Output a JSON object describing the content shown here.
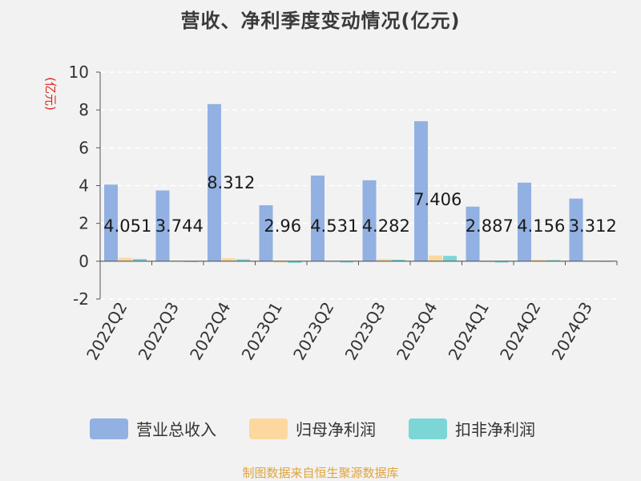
{
  "title": "营收、净利季度变动情况(亿元)",
  "source": "制图数据来自恒生聚源数据库",
  "colors": {
    "revenue": "#92b1e2",
    "net_profit": "#fcd89e",
    "deducted_profit": "#7cd6d6",
    "grid": "#ffffff",
    "axis": "#555555"
  },
  "chart_data": {
    "type": "bar",
    "title": "营收、净利季度变动情况(亿元)",
    "ylabel": "(亿元)",
    "xlabel": "",
    "ylim": [
      -2,
      10
    ],
    "yticks": [
      -2,
      0,
      2,
      4,
      6,
      8,
      10
    ],
    "grid": true,
    "legend_position": "bottom",
    "categories": [
      "2022Q2",
      "2022Q3",
      "2022Q4",
      "2023Q1",
      "2023Q2",
      "2023Q3",
      "2023Q4",
      "2024Q1",
      "2024Q2",
      "2024Q3"
    ],
    "series": [
      {
        "name": "营业总收入",
        "values": [
          4.051,
          3.744,
          8.312,
          2.96,
          4.531,
          4.282,
          7.406,
          2.887,
          4.156,
          3.312
        ]
      },
      {
        "name": "归母净利润",
        "values": [
          0.18,
          0.02,
          0.16,
          -0.07,
          -0.04,
          0.11,
          0.3,
          -0.05,
          0.08,
          0.02
        ]
      },
      {
        "name": "扣非净利润",
        "values": [
          0.12,
          -0.01,
          0.1,
          -0.09,
          -0.07,
          0.08,
          0.28,
          -0.07,
          0.06,
          0.01
        ]
      }
    ],
    "data_labels": [
      "4.051",
      "3.744",
      "8.312",
      "2.96",
      "4.531",
      "4.282",
      "7.406",
      "2.887",
      "4.156",
      "3.312"
    ]
  }
}
